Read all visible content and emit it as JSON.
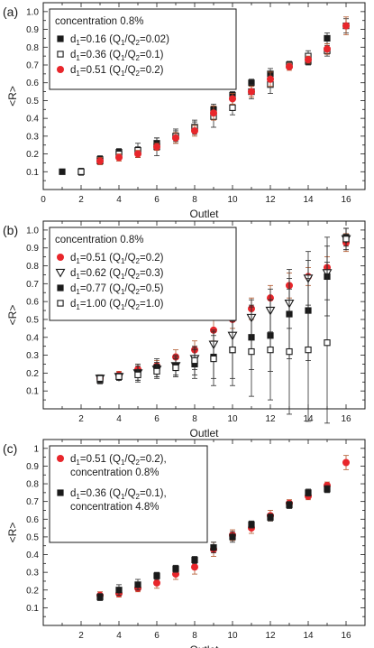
{
  "chart_data": [
    {
      "type": "scatter",
      "panel_label": "(a)",
      "xlabel": "Outlet",
      "ylabel": "<R>",
      "xlim": [
        0,
        17
      ],
      "ylim": [
        0,
        1.05
      ],
      "xticks": [
        0,
        2,
        4,
        6,
        8,
        10,
        12,
        14,
        16
      ],
      "yticks": [
        0.1,
        0.2,
        0.3,
        0.4,
        0.5,
        0.6,
        0.7,
        0.8,
        0.9,
        1.0
      ],
      "ytick_labels": [
        "0.1",
        "0.2",
        "0.3",
        "0.4",
        "0.5",
        "0.6",
        "0.7",
        "0.8",
        "0.9",
        "1.0"
      ],
      "grid": false,
      "legend_position": "top-left",
      "legend_title": "concentration 0.8%",
      "series": [
        {
          "name": "d1=0.16 (Q1/Q2=0.02)",
          "label_parts": {
            "d": "0.16",
            "q": "0.02"
          },
          "marker": "square-filled",
          "color": "#1a1a1a",
          "x": [
            1,
            2,
            3,
            4,
            5,
            6,
            7,
            8,
            9,
            10,
            11,
            12,
            13,
            14,
            15,
            16
          ],
          "y": [
            0.1,
            0.1,
            0.17,
            0.21,
            0.22,
            0.26,
            0.3,
            0.35,
            0.45,
            0.53,
            0.6,
            0.65,
            0.7,
            0.72,
            0.85,
            0.92
          ],
          "err": [
            0,
            0.01,
            0.02,
            0.02,
            0.02,
            0.03,
            0.03,
            0.03,
            0.03,
            0.02,
            0.02,
            0.03,
            0.02,
            0.02,
            0.03,
            0.04
          ]
        },
        {
          "name": "d1=0.36 (Q1/Q2=0.1)",
          "label_parts": {
            "d": "0.36",
            "q": "0.1"
          },
          "marker": "square-open",
          "color": "#1a1a1a",
          "x": [
            2,
            3,
            4,
            5,
            6,
            7,
            8,
            9,
            10,
            11,
            12,
            13,
            14,
            15
          ],
          "y": [
            0.1,
            0.16,
            0.2,
            0.22,
            0.24,
            0.3,
            0.35,
            0.41,
            0.46,
            0.55,
            0.59,
            0.7,
            0.75,
            0.78
          ],
          "err": [
            0.02,
            0.02,
            0.02,
            0.04,
            0.05,
            0.04,
            0.04,
            0.06,
            0.04,
            0.04,
            0.05,
            0.02,
            0.03,
            0.03
          ]
        },
        {
          "name": "d1=0.51 (Q1/Q2=0.2)",
          "label_parts": {
            "d": "0.51",
            "q": "0.2"
          },
          "marker": "circle-filled",
          "color": "#e8262b",
          "x": [
            3,
            4,
            5,
            6,
            7,
            8,
            9,
            10,
            11,
            12,
            13,
            14,
            15,
            16
          ],
          "y": [
            0.16,
            0.18,
            0.2,
            0.24,
            0.29,
            0.33,
            0.43,
            0.51,
            0.55,
            0.62,
            0.69,
            0.73,
            0.79,
            0.92
          ],
          "err": [
            0.02,
            0.02,
            0.02,
            0.02,
            0.03,
            0.03,
            0.04,
            0.03,
            0.03,
            0.04,
            0.02,
            0.02,
            0.03,
            0.05
          ]
        }
      ]
    },
    {
      "type": "scatter",
      "panel_label": "(b)",
      "xlabel": "Outlet",
      "ylabel": "<R>",
      "xlim": [
        0,
        17
      ],
      "ylim": [
        0,
        1.05
      ],
      "xticks": [
        2,
        4,
        6,
        8,
        10,
        12,
        14,
        16
      ],
      "yticks": [
        0.1,
        0.2,
        0.3,
        0.4,
        0.5,
        0.6,
        0.7,
        0.8,
        0.9,
        1.0
      ],
      "ytick_labels": [
        "0.1",
        "0.2",
        "0.3",
        "0.4",
        "0.5",
        "0.6",
        "0.7",
        "0.8",
        "0.9",
        "1.0"
      ],
      "grid": false,
      "legend_position": "top-left",
      "legend_title": "concentration 0.8%",
      "series": [
        {
          "name": "d1=0.51 (Q1/Q2=0.2)",
          "label_parts": {
            "d": "0.51",
            "q": "0.2"
          },
          "marker": "circle-filled",
          "color": "#e8262b",
          "x": [
            3,
            4,
            5,
            6,
            7,
            8,
            9,
            10,
            11,
            12,
            13,
            14,
            15,
            16
          ],
          "y": [
            0.17,
            0.19,
            0.22,
            0.24,
            0.29,
            0.33,
            0.44,
            0.5,
            0.56,
            0.62,
            0.69,
            0.74,
            0.79,
            0.93
          ],
          "err": [
            0.02,
            0.02,
            0.03,
            0.03,
            0.04,
            0.05,
            0.06,
            0.05,
            0.06,
            0.07,
            0.07,
            0.05,
            0.06,
            0.05
          ]
        },
        {
          "name": "d1=0.62 (Q1/Q2=0.3)",
          "label_parts": {
            "d": "0.62",
            "q": "0.3"
          },
          "marker": "triangle-down-open",
          "color": "#1a1a1a",
          "x": [
            3,
            4,
            5,
            6,
            7,
            8,
            9,
            10,
            11,
            12,
            13,
            14,
            15,
            16
          ],
          "y": [
            0.17,
            0.18,
            0.2,
            0.22,
            0.24,
            0.28,
            0.36,
            0.41,
            0.51,
            0.55,
            0.59,
            0.73,
            0.76,
            0.95
          ],
          "err": [
            0.02,
            0.02,
            0.04,
            0.04,
            0.05,
            0.06,
            0.08,
            0.09,
            0.1,
            0.12,
            0.14,
            0.15,
            0.15,
            0.06
          ]
        },
        {
          "name": "d1=0.77 (Q1/Q2=0.5)",
          "label_parts": {
            "d": "0.77",
            "q": "0.5"
          },
          "marker": "square-filled",
          "color": "#1a1a1a",
          "x": [
            3,
            4,
            5,
            6,
            7,
            8,
            9,
            10,
            11,
            12,
            13,
            14,
            15,
            16
          ],
          "y": [
            0.16,
            0.18,
            0.2,
            0.23,
            0.24,
            0.25,
            0.29,
            0.33,
            0.4,
            0.41,
            0.53,
            0.55,
            0.74,
            0.96
          ],
          "err": [
            0.02,
            0.02,
            0.05,
            0.05,
            0.06,
            0.08,
            0.12,
            0.16,
            0.18,
            0.2,
            0.25,
            0.28,
            0.22,
            0.05
          ]
        },
        {
          "name": "d1=1.00 (Q1/Q2=1.0)",
          "label_parts": {
            "d": "1.00",
            "q": "1.0"
          },
          "marker": "square-open",
          "color": "#1a1a1a",
          "x": [
            3,
            4,
            5,
            6,
            7,
            8,
            9,
            10,
            11,
            12,
            13,
            14,
            15,
            16
          ],
          "y": [
            0.17,
            0.18,
            0.19,
            0.21,
            0.23,
            0.27,
            0.28,
            0.33,
            0.32,
            0.33,
            0.32,
            0.33,
            0.37,
            0.95
          ],
          "err": [
            0.02,
            0.02,
            0.03,
            0.04,
            0.05,
            0.08,
            0.15,
            0.2,
            0.25,
            0.28,
            0.35,
            0.4,
            0.45,
            0.06
          ]
        }
      ]
    },
    {
      "type": "scatter",
      "panel_label": "(c)",
      "xlabel": "Outlet",
      "ylabel": "<R>",
      "xlim": [
        0,
        17
      ],
      "ylim": [
        0,
        1.05
      ],
      "xticks": [
        2,
        4,
        6,
        8,
        10,
        12,
        14,
        16
      ],
      "yticks": [
        0.1,
        0.2,
        0.3,
        0.4,
        0.5,
        0.6,
        0.7,
        0.8,
        0.9,
        1.0
      ],
      "ytick_labels": [
        "0.1",
        "0.2",
        "0.3",
        "0.4",
        "0.5",
        "0.6",
        "0.7",
        "0.8",
        "0.9",
        "1"
      ],
      "grid": false,
      "legend_position": "top-left",
      "series": [
        {
          "name": "d1=0.51 (Q1/Q2=0.2), concentration 0.8%",
          "label_parts": {
            "d": "0.51",
            "q": "0.2",
            "suffix": "),",
            "conc": "concentration 0.8%"
          },
          "marker": "circle-filled",
          "color": "#e8262b",
          "x": [
            3,
            4,
            5,
            6,
            7,
            8,
            9,
            10,
            11,
            12,
            13,
            14,
            15,
            16
          ],
          "y": [
            0.17,
            0.18,
            0.21,
            0.24,
            0.29,
            0.33,
            0.43,
            0.51,
            0.55,
            0.62,
            0.69,
            0.73,
            0.79,
            0.92
          ],
          "err": [
            0.02,
            0.02,
            0.02,
            0.03,
            0.03,
            0.04,
            0.04,
            0.03,
            0.03,
            0.03,
            0.02,
            0.02,
            0.02,
            0.04
          ]
        },
        {
          "name": "d1=0.36 (Q1/Q2=0.1), concentration 4.8%",
          "label_parts": {
            "d": "0.36",
            "q": "0.1",
            "suffix": "),",
            "conc": "concentration 4.8%"
          },
          "marker": "square-filled",
          "color": "#1a1a1a",
          "x": [
            3,
            4,
            5,
            6,
            7,
            8,
            9,
            10,
            11,
            12,
            13,
            14,
            15
          ],
          "y": [
            0.16,
            0.2,
            0.23,
            0.28,
            0.32,
            0.37,
            0.44,
            0.5,
            0.57,
            0.61,
            0.68,
            0.75,
            0.77
          ],
          "err": [
            0.02,
            0.03,
            0.03,
            0.02,
            0.02,
            0.02,
            0.03,
            0.03,
            0.02,
            0.02,
            0.02,
            0.02,
            0.02
          ]
        }
      ]
    }
  ]
}
